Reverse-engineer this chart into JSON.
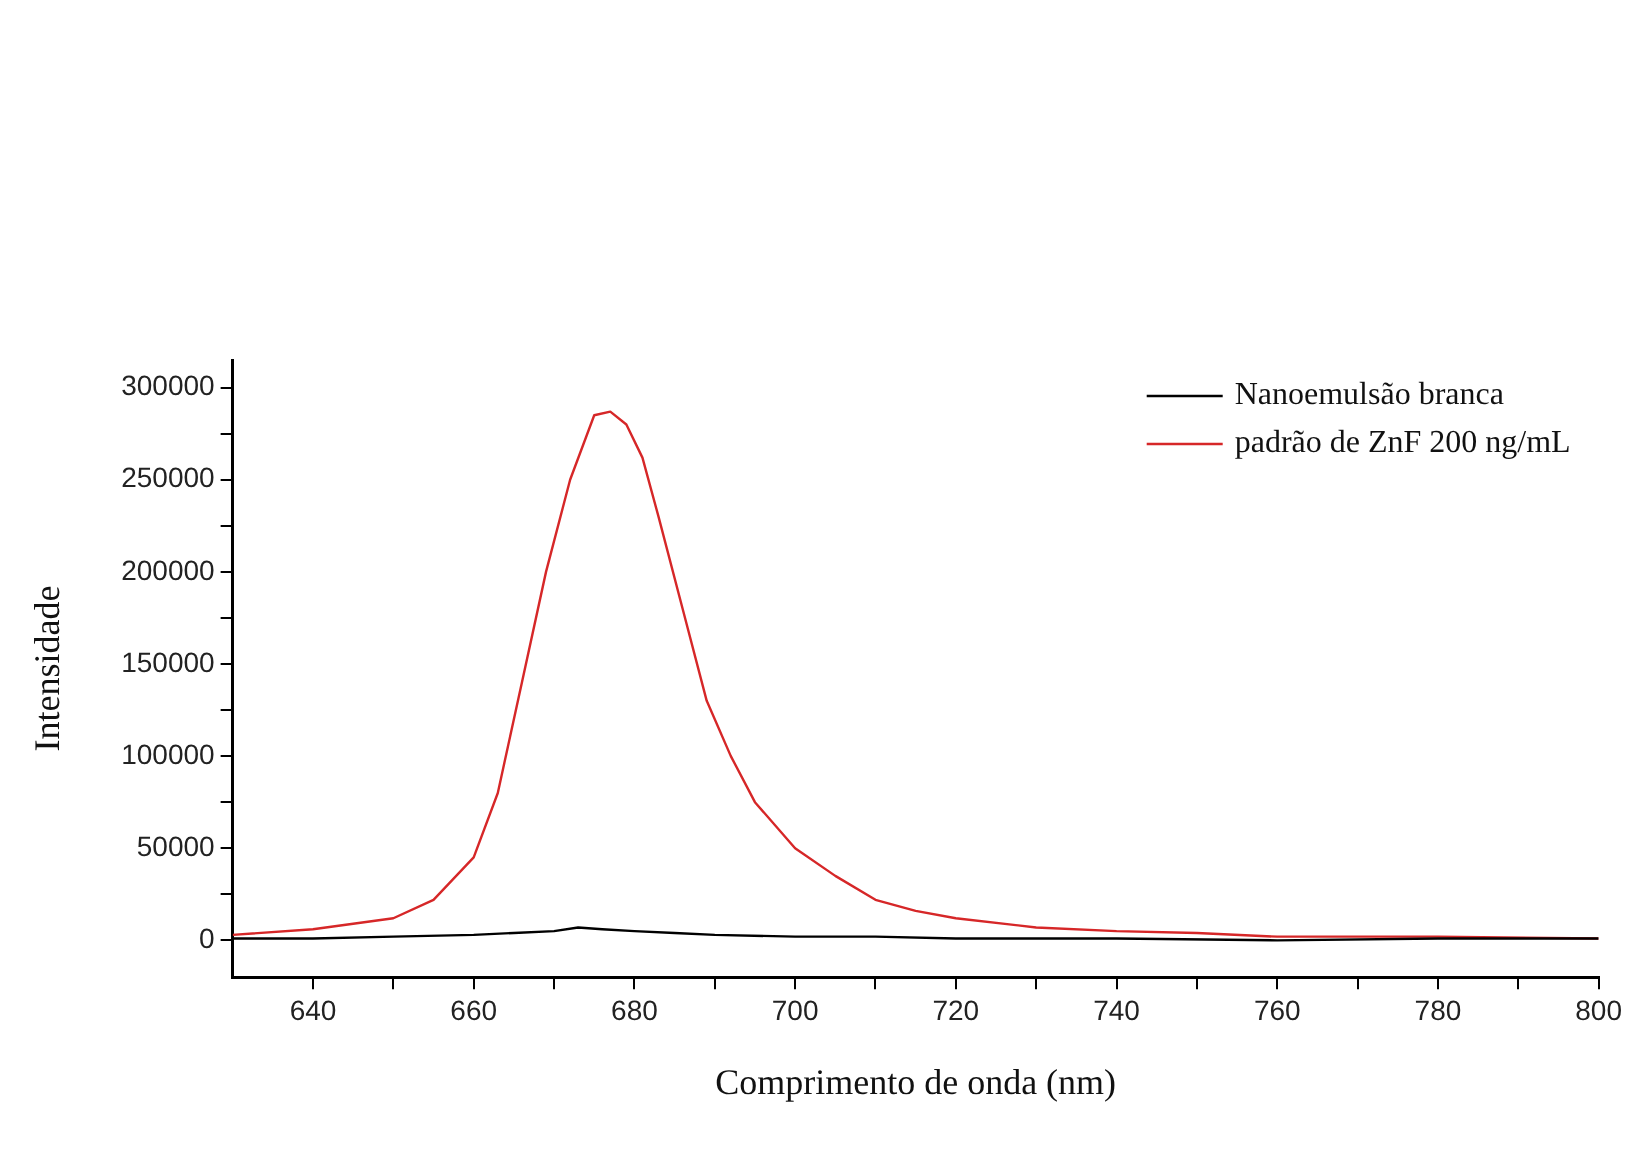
{
  "chart_data": {
    "type": "line",
    "xlabel": "Comprimento de onda (nm)",
    "ylabel": "Intensidade",
    "xlim": [
      630,
      800
    ],
    "xticks": [
      640,
      {
        "value": 650,
        "label": null
      },
      660,
      {
        "value": 670,
        "label": null
      },
      680,
      {
        "value": 690,
        "label": null
      },
      700,
      {
        "value": 710,
        "label": null
      },
      720,
      {
        "value": 730,
        "label": null
      },
      740,
      {
        "value": 750,
        "label": null
      },
      760,
      {
        "value": 770,
        "label": null
      },
      780,
      {
        "value": 790,
        "label": null
      },
      800
    ],
    "ylim": [
      -20000,
      315000
    ],
    "yticks": [
      0,
      {
        "value": 25000,
        "label": null
      },
      50000,
      {
        "value": 75000,
        "label": null
      },
      100000,
      {
        "value": 125000,
        "label": null
      },
      150000,
      {
        "value": 175000,
        "label": null
      },
      200000,
      {
        "value": 225000,
        "label": null
      },
      250000,
      {
        "value": 275000,
        "label": null
      },
      300000
    ],
    "legend": "top right",
    "marker": "none",
    "line_style": "solid",
    "grid": false,
    "series": [
      {
        "name": "Nanoemulsão branca",
        "color": "#000000",
        "x": [
          630,
          640,
          650,
          660,
          665,
          670,
          673,
          676,
          680,
          685,
          690,
          700,
          710,
          720,
          740,
          760,
          780,
          800
        ],
        "values": [
          1000,
          1000,
          2000,
          3000,
          4000,
          5000,
          7000,
          6000,
          5000,
          4000,
          3000,
          2000,
          2000,
          1000,
          1000,
          0,
          1000,
          1000
        ]
      },
      {
        "name": "padrão de ZnF 200 ng/mL",
        "color": "#d62728",
        "x": [
          630,
          640,
          645,
          650,
          655,
          660,
          663,
          666,
          669,
          672,
          675,
          677,
          679,
          681,
          683,
          686,
          689,
          692,
          695,
          700,
          705,
          710,
          715,
          720,
          730,
          740,
          750,
          760,
          780,
          800
        ],
        "values": [
          3000,
          6000,
          9000,
          12000,
          22000,
          45000,
          80000,
          140000,
          200000,
          250000,
          285000,
          287000,
          280000,
          262000,
          230000,
          180000,
          130000,
          100000,
          75000,
          50000,
          35000,
          22000,
          16000,
          12000,
          7000,
          5000,
          4000,
          2000,
          2000,
          1000
        ]
      }
    ]
  }
}
